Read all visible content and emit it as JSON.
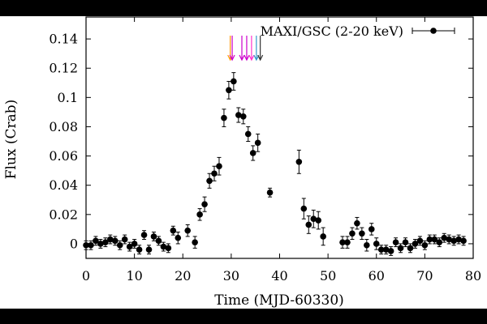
{
  "chart_data": {
    "type": "scatter",
    "xlabel": "Time (MJD-60330)",
    "ylabel": "Flux (Crab)",
    "xlim": [
      0,
      80
    ],
    "ylim": [
      -0.01,
      0.155
    ],
    "xticks": [
      "0",
      "10",
      "20",
      "30",
      "40",
      "50",
      "60",
      "70",
      "80"
    ],
    "yticks": [
      "0",
      "0.02",
      "0.04",
      "0.06",
      "0.08",
      "0.1",
      "0.12",
      "0.14"
    ],
    "grid": false,
    "legend": "top-right",
    "series": [
      {
        "name": "MAXI/GSC (2-20 keV)",
        "color": "#000000",
        "points": [
          {
            "x": 0,
            "y": -0.001,
            "err": 0.003
          },
          {
            "x": 1,
            "y": -0.001,
            "err": 0.003
          },
          {
            "x": 2,
            "y": 0.002,
            "err": 0.003
          },
          {
            "x": 3,
            "y": 0.0,
            "err": 0.003
          },
          {
            "x": 4,
            "y": 0.001,
            "err": 0.003
          },
          {
            "x": 5,
            "y": 0.003,
            "err": 0.003
          },
          {
            "x": 6,
            "y": 0.002,
            "err": 0.003
          },
          {
            "x": 7,
            "y": -0.001,
            "err": 0.003
          },
          {
            "x": 8,
            "y": 0.003,
            "err": 0.003
          },
          {
            "x": 9,
            "y": -0.002,
            "err": 0.003
          },
          {
            "x": 10,
            "y": 0.0,
            "err": 0.003
          },
          {
            "x": 11,
            "y": -0.004,
            "err": 0.003
          },
          {
            "x": 12,
            "y": 0.006,
            "err": 0.003
          },
          {
            "x": 13,
            "y": -0.004,
            "err": 0.003
          },
          {
            "x": 14,
            "y": 0.005,
            "err": 0.003
          },
          {
            "x": 15,
            "y": 0.002,
            "err": 0.003
          },
          {
            "x": 16,
            "y": -0.002,
            "err": 0.003
          },
          {
            "x": 17,
            "y": -0.003,
            "err": 0.003
          },
          {
            "x": 18,
            "y": 0.009,
            "err": 0.003
          },
          {
            "x": 19,
            "y": 0.004,
            "err": 0.004
          },
          {
            "x": 21,
            "y": 0.009,
            "err": 0.004
          },
          {
            "x": 22.5,
            "y": 0.001,
            "err": 0.004
          },
          {
            "x": 23.5,
            "y": 0.02,
            "err": 0.004
          },
          {
            "x": 24.5,
            "y": 0.027,
            "err": 0.005
          },
          {
            "x": 25.5,
            "y": 0.043,
            "err": 0.005
          },
          {
            "x": 26.5,
            "y": 0.048,
            "err": 0.005
          },
          {
            "x": 27.5,
            "y": 0.053,
            "err": 0.006
          },
          {
            "x": 28.5,
            "y": 0.086,
            "err": 0.006
          },
          {
            "x": 29.5,
            "y": 0.105,
            "err": 0.006
          },
          {
            "x": 30.5,
            "y": 0.111,
            "err": 0.006
          },
          {
            "x": 31.5,
            "y": 0.088,
            "err": 0.005
          },
          {
            "x": 32.5,
            "y": 0.087,
            "err": 0.005
          },
          {
            "x": 33.5,
            "y": 0.075,
            "err": 0.005
          },
          {
            "x": 34.5,
            "y": 0.062,
            "err": 0.005
          },
          {
            "x": 35.5,
            "y": 0.069,
            "err": 0.006
          },
          {
            "x": 38,
            "y": 0.035,
            "err": 0.003
          },
          {
            "x": 44,
            "y": 0.056,
            "err": 0.008
          },
          {
            "x": 45,
            "y": 0.024,
            "err": 0.007
          },
          {
            "x": 46,
            "y": 0.013,
            "err": 0.006
          },
          {
            "x": 47,
            "y": 0.017,
            "err": 0.006
          },
          {
            "x": 48,
            "y": 0.016,
            "err": 0.006
          },
          {
            "x": 49,
            "y": 0.005,
            "err": 0.006
          },
          {
            "x": 53,
            "y": 0.001,
            "err": 0.004
          },
          {
            "x": 54,
            "y": 0.001,
            "err": 0.004
          },
          {
            "x": 55,
            "y": 0.007,
            "err": 0.004
          },
          {
            "x": 56,
            "y": 0.014,
            "err": 0.004
          },
          {
            "x": 57,
            "y": 0.007,
            "err": 0.004
          },
          {
            "x": 58,
            "y": -0.001,
            "err": 0.004
          },
          {
            "x": 59,
            "y": 0.01,
            "err": 0.004
          },
          {
            "x": 60,
            "y": 0.0,
            "err": 0.004
          },
          {
            "x": 61,
            "y": -0.004,
            "err": 0.003
          },
          {
            "x": 62,
            "y": -0.004,
            "err": 0.003
          },
          {
            "x": 63,
            "y": -0.005,
            "err": 0.003
          },
          {
            "x": 64,
            "y": 0.001,
            "err": 0.003
          },
          {
            "x": 65,
            "y": -0.003,
            "err": 0.003
          },
          {
            "x": 66,
            "y": 0.001,
            "err": 0.003
          },
          {
            "x": 67,
            "y": -0.003,
            "err": 0.003
          },
          {
            "x": 68,
            "y": 0.0,
            "err": 0.003
          },
          {
            "x": 69,
            "y": 0.002,
            "err": 0.003
          },
          {
            "x": 70,
            "y": -0.001,
            "err": 0.003
          },
          {
            "x": 71,
            "y": 0.003,
            "err": 0.003
          },
          {
            "x": 72,
            "y": 0.003,
            "err": 0.003
          },
          {
            "x": 73,
            "y": 0.001,
            "err": 0.003
          },
          {
            "x": 74,
            "y": 0.004,
            "err": 0.003
          },
          {
            "x": 75,
            "y": 0.003,
            "err": 0.003
          },
          {
            "x": 76,
            "y": 0.002,
            "err": 0.003
          },
          {
            "x": 77,
            "y": 0.003,
            "err": 0.003
          },
          {
            "x": 78,
            "y": 0.002,
            "err": 0.003
          }
        ]
      }
    ],
    "arrows": [
      {
        "x": 29.8,
        "color": "#ff9900"
      },
      {
        "x": 30.2,
        "color": "#cc00cc"
      },
      {
        "x": 32.2,
        "color": "#cc00cc"
      },
      {
        "x": 33.2,
        "color": "#cc00cc"
      },
      {
        "x": 34.2,
        "color": "#ff33cc"
      },
      {
        "x": 35.2,
        "color": "#3399cc"
      },
      {
        "x": 36.0,
        "color": "#333333"
      }
    ]
  }
}
